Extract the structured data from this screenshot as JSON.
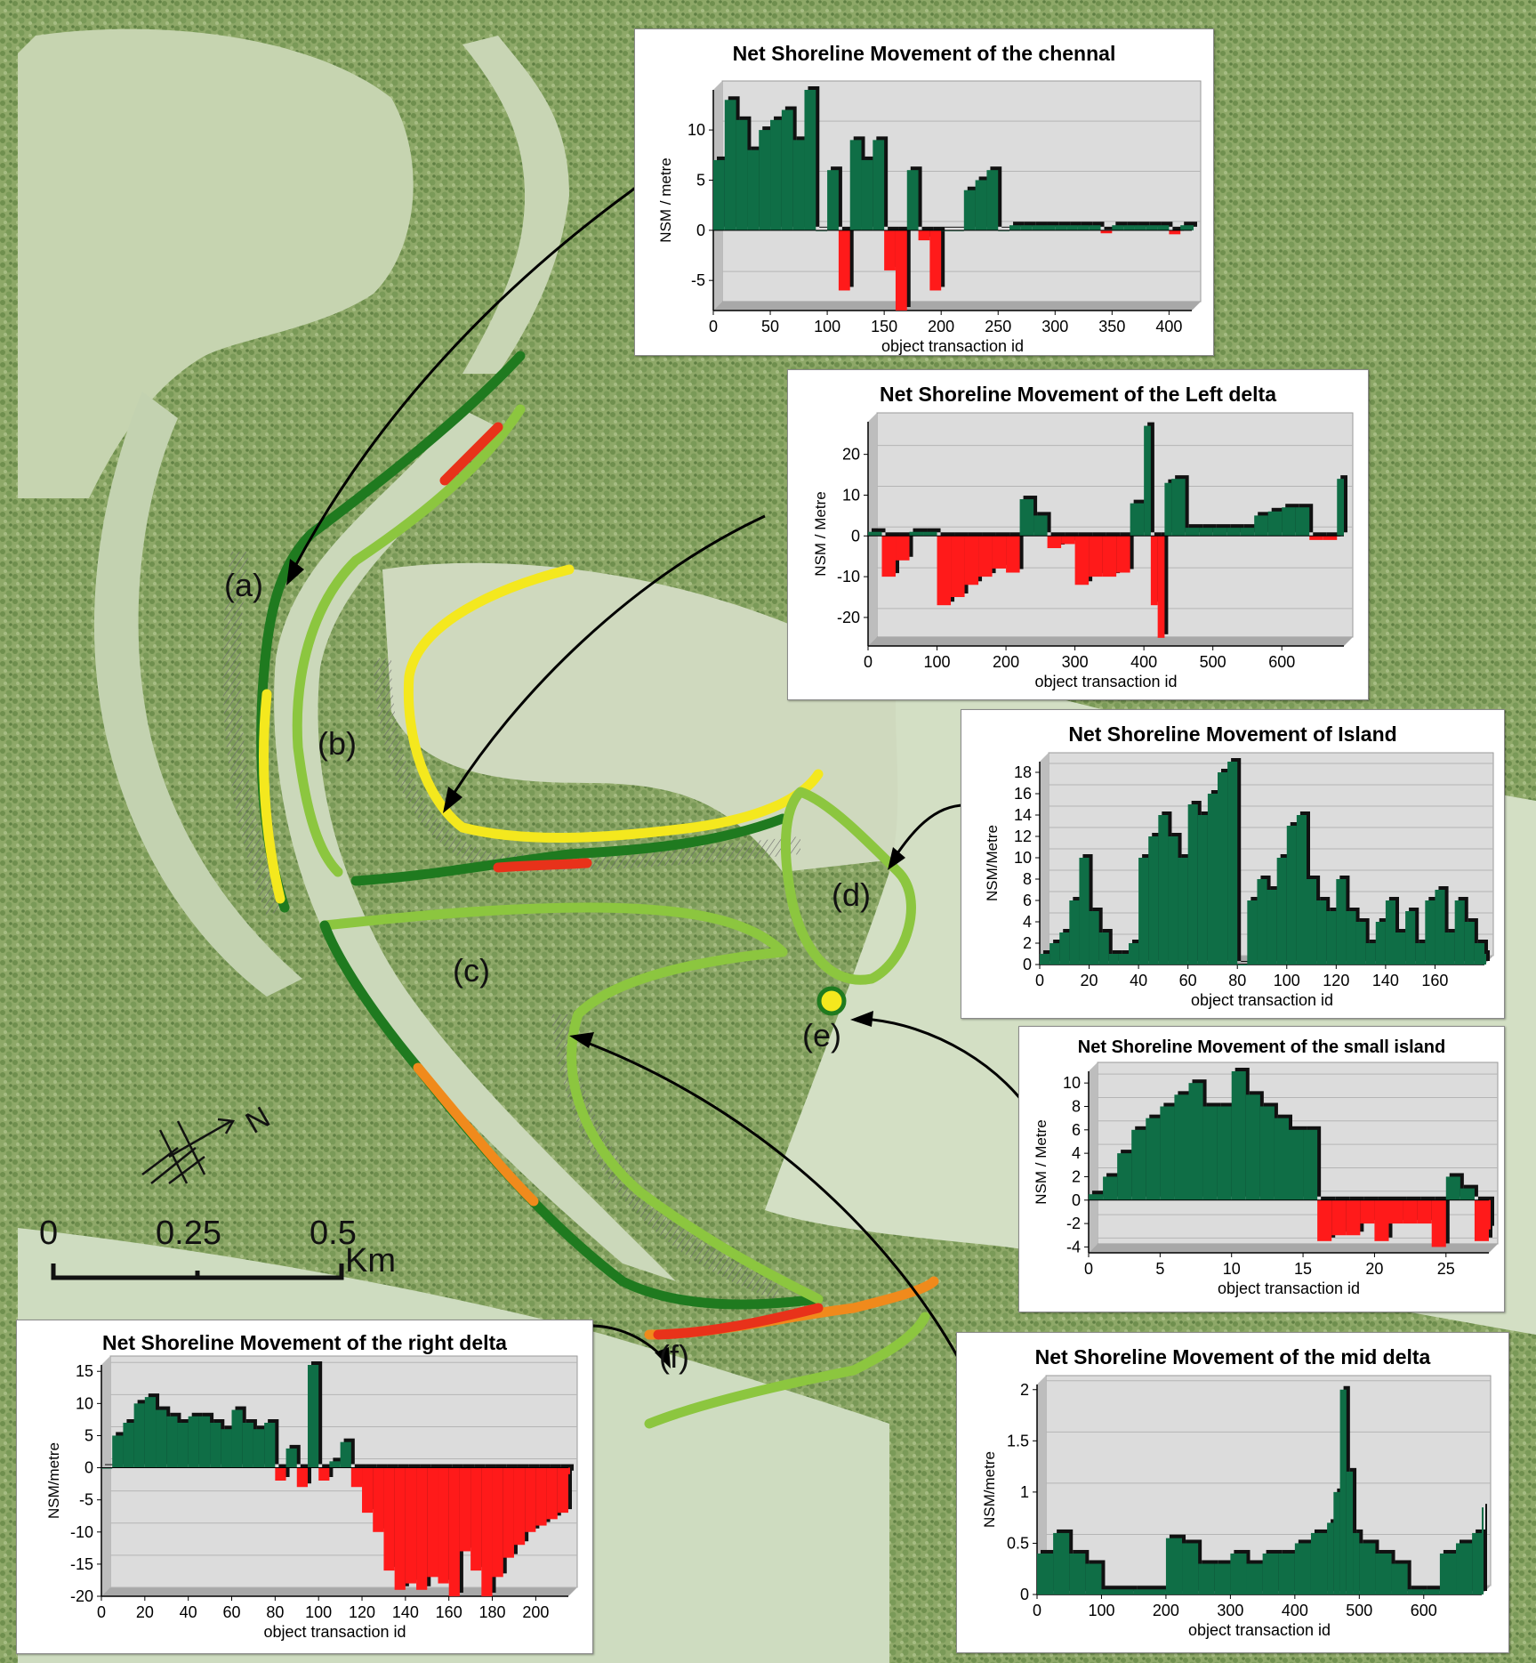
{
  "map": {
    "region_labels": [
      "(a)",
      "(b)",
      "(c)",
      "(d)",
      "(e)",
      "(f)"
    ],
    "scale_bar": {
      "ticks": [
        "0",
        "0.25",
        "0.5"
      ],
      "unit": "Km"
    },
    "north_arrow": "N",
    "colors": {
      "accretion": "#0f6e46",
      "erosion": "#ff1a1a",
      "shore_dark_green": "#1f7a1f",
      "shore_light_green": "#8cc63f",
      "shore_yellow": "#f4e81e",
      "shore_orange": "#f08a1c",
      "shore_red": "#e8321a"
    }
  },
  "charts": [
    {
      "id": "channel",
      "title": "Net Shoreline Movement of the chennal",
      "ylabel": "NSM / metre",
      "xlabel": "object transaction  id"
    },
    {
      "id": "left",
      "title": "Net Shoreline Movement of the Left delta",
      "ylabel": "NSM / Metre",
      "xlabel": "object transaction  id"
    },
    {
      "id": "island",
      "title": "Net Shoreline Movement of Island",
      "ylabel": "NSM/Metre",
      "xlabel": "object transaction  id"
    },
    {
      "id": "small",
      "title": "Net Shoreline Movement of the small island",
      "ylabel": "NSM / Metre",
      "xlabel": "object transaction  id"
    },
    {
      "id": "mid",
      "title": "Net Shoreline Movement of the mid delta",
      "ylabel": "NSM/metre",
      "xlabel": "object transaction  id"
    },
    {
      "id": "right",
      "title": "Net Shoreline Movement of the right delta",
      "ylabel": "NSM/metre",
      "xlabel": "object transaction  id"
    }
  ],
  "chart_data": [
    {
      "type": "bar",
      "id": "channel",
      "x": [
        0,
        10,
        20,
        30,
        40,
        50,
        60,
        70,
        80,
        90,
        100,
        110,
        120,
        130,
        140,
        150,
        160,
        170,
        180,
        190,
        200,
        210,
        220,
        230,
        240,
        250,
        260,
        270,
        280,
        290,
        300,
        310,
        320,
        330,
        340,
        350,
        360,
        370,
        380,
        390,
        400,
        410,
        420
      ],
      "values": [
        7,
        13,
        11,
        8,
        10,
        11,
        12,
        9,
        14,
        0,
        6,
        -6,
        9,
        7,
        9,
        -4,
        -8,
        6,
        -1,
        -6,
        0,
        0,
        4,
        5,
        6,
        0,
        0.5,
        0.5,
        0.5,
        0.5,
        0.5,
        0.5,
        0.5,
        0.5,
        -0.3,
        0.5,
        0.5,
        0.5,
        0.5,
        0.5,
        -0.4,
        0.5,
        0.5
      ],
      "xticks": [
        0,
        50,
        100,
        150,
        200,
        250,
        300,
        350,
        400
      ],
      "yticks": [
        -5,
        0,
        5,
        10
      ],
      "xlim": [
        0,
        420
      ],
      "ylim": [
        -8,
        14
      ]
    },
    {
      "type": "bar",
      "id": "left",
      "x": [
        0,
        20,
        40,
        60,
        80,
        100,
        120,
        140,
        160,
        180,
        200,
        220,
        240,
        260,
        280,
        300,
        320,
        340,
        360,
        380,
        400,
        410,
        420,
        430,
        440,
        460,
        480,
        500,
        520,
        540,
        560,
        580,
        600,
        620,
        640,
        660,
        680
      ],
      "values": [
        1,
        -10,
        -6,
        1,
        1,
        -17,
        -15,
        -12,
        -10,
        -8,
        -9,
        9,
        5,
        -3,
        -2,
        -12,
        -10,
        -10,
        -9,
        8,
        27,
        -17,
        -25,
        13,
        14,
        2,
        2,
        2,
        2,
        2,
        5,
        6,
        7,
        7,
        -1,
        -1,
        14
      ],
      "xticks": [
        0,
        100,
        200,
        300,
        400,
        500,
        600
      ],
      "yticks": [
        -20,
        -10,
        0,
        10,
        20
      ],
      "xlim": [
        0,
        690
      ],
      "ylim": [
        -27,
        28
      ]
    },
    {
      "type": "bar",
      "id": "island",
      "x": [
        0,
        4,
        8,
        12,
        16,
        20,
        24,
        28,
        32,
        36,
        40,
        44,
        48,
        52,
        56,
        60,
        64,
        68,
        72,
        76,
        80,
        84,
        88,
        92,
        96,
        100,
        104,
        108,
        112,
        116,
        120,
        124,
        128,
        132,
        136,
        140,
        144,
        148,
        152,
        156,
        160,
        164,
        168,
        172,
        176,
        180
      ],
      "values": [
        1,
        2,
        3,
        6,
        10,
        5,
        3,
        1,
        1,
        2,
        10,
        12,
        14,
        12,
        10,
        15,
        14,
        16,
        18,
        19,
        0,
        6,
        8,
        7,
        10,
        13,
        14,
        8,
        6,
        5,
        8,
        5,
        4,
        2,
        4,
        6,
        3,
        5,
        2,
        6,
        7,
        3,
        6,
        4,
        2,
        1
      ],
      "xticks": [
        0,
        20,
        40,
        60,
        80,
        100,
        120,
        140,
        160
      ],
      "yticks": [
        0,
        2,
        4,
        6,
        8,
        10,
        12,
        14,
        16,
        18
      ],
      "xlim": [
        0,
        180
      ],
      "ylim": [
        0,
        19
      ]
    },
    {
      "type": "bar",
      "id": "small",
      "x": [
        0,
        1,
        2,
        3,
        4,
        5,
        6,
        7,
        8,
        9,
        10,
        11,
        12,
        13,
        14,
        15,
        16,
        17,
        18,
        19,
        20,
        21,
        22,
        23,
        24,
        25,
        26,
        27,
        28
      ],
      "values": [
        0.5,
        2,
        4,
        6,
        7,
        8,
        9,
        10,
        8,
        8,
        11,
        9,
        8,
        7,
        6,
        6,
        -3.5,
        -3,
        -3,
        -2,
        -3.5,
        -2,
        -2,
        -2,
        -4,
        2,
        1,
        -3.5,
        -2.5
      ],
      "xticks": [
        0,
        5,
        10,
        15,
        20,
        25
      ],
      "yticks": [
        -4,
        -2,
        0,
        2,
        4,
        6,
        8,
        10
      ],
      "xlim": [
        0,
        28
      ],
      "ylim": [
        -4.5,
        11
      ]
    },
    {
      "type": "bar",
      "id": "mid",
      "x": [
        0,
        25,
        50,
        75,
        100,
        150,
        200,
        225,
        250,
        275,
        300,
        325,
        350,
        375,
        400,
        425,
        450,
        460,
        470,
        480,
        490,
        500,
        525,
        550,
        575,
        600,
        625,
        650,
        675,
        690
      ],
      "values": [
        0.4,
        0.6,
        0.4,
        0.3,
        0.05,
        0.05,
        0.55,
        0.5,
        0.3,
        0.3,
        0.4,
        0.3,
        0.4,
        0.4,
        0.5,
        0.6,
        0.7,
        1.0,
        2.0,
        1.2,
        0.6,
        0.5,
        0.4,
        0.3,
        0.05,
        0.05,
        0.4,
        0.5,
        0.6,
        0.85
      ],
      "xticks": [
        0,
        100,
        200,
        300,
        400,
        500,
        600
      ],
      "yticks": [
        0,
        0.5,
        1,
        1.5,
        2
      ],
      "xlim": [
        0,
        690
      ],
      "ylim": [
        0,
        2.05
      ]
    },
    {
      "type": "bar",
      "id": "right",
      "x": [
        0,
        5,
        10,
        15,
        20,
        25,
        30,
        35,
        40,
        45,
        50,
        55,
        60,
        65,
        70,
        75,
        80,
        85,
        90,
        95,
        100,
        105,
        110,
        115,
        120,
        125,
        130,
        135,
        140,
        145,
        150,
        155,
        160,
        165,
        170,
        175,
        180,
        185,
        190,
        195,
        200,
        205,
        210,
        215
      ],
      "values": [
        0,
        5,
        7,
        10,
        11,
        9,
        8,
        7,
        8,
        8,
        7,
        6,
        9,
        7,
        6,
        7,
        -2,
        3,
        -3,
        16,
        -2,
        1,
        4,
        -3,
        -7,
        -10,
        -16,
        -19,
        -18,
        -19,
        -17,
        -18,
        -20,
        -13,
        -16,
        -20,
        -17,
        -14,
        -12,
        -10,
        -9,
        -8,
        -7,
        -1
      ],
      "xticks": [
        0,
        20,
        40,
        60,
        80,
        100,
        120,
        140,
        160,
        180,
        200
      ],
      "yticks": [
        -20,
        -15,
        -10,
        -5,
        0,
        5,
        10,
        15
      ],
      "xlim": [
        0,
        215
      ],
      "ylim": [
        -20,
        16
      ]
    }
  ]
}
